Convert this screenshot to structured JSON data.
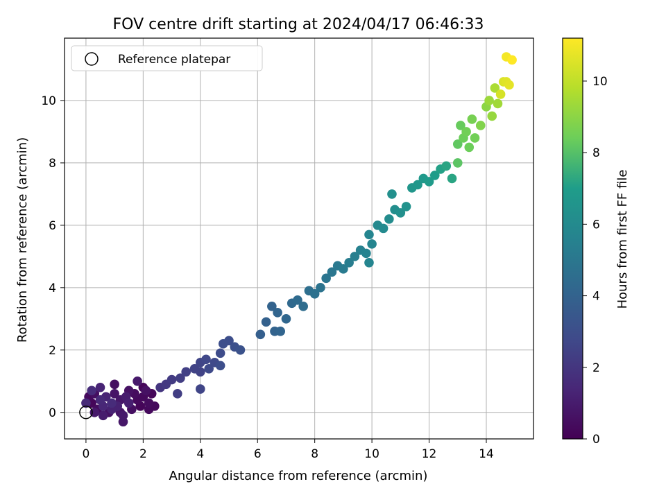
{
  "chart_data": {
    "type": "scatter",
    "title": "FOV centre drift starting at 2024/04/17 06:46:33",
    "xlabel": "Angular distance from reference (arcmin)",
    "ylabel": "Rotation from reference (arcmin)",
    "xlim": [
      -0.75,
      15.65
    ],
    "ylim": [
      -0.85,
      12.0
    ],
    "xticks": [
      0,
      2,
      4,
      6,
      8,
      10,
      12,
      14
    ],
    "yticks": [
      0,
      2,
      4,
      6,
      8,
      10
    ],
    "grid": true,
    "legend": {
      "placement": "top-left",
      "entries": [
        {
          "label": "Reference platepar",
          "marker": "open-circle",
          "color": "#000000"
        }
      ]
    },
    "reference_point": {
      "x": 0,
      "y": 0
    },
    "colorbar": {
      "label": "Hours from first FF file",
      "range": [
        0,
        11.2
      ],
      "ticks": [
        0,
        2,
        4,
        6,
        8,
        10
      ],
      "colormap": "viridis",
      "colors": [
        "#440154",
        "#482777",
        "#3f4a8a",
        "#31678e",
        "#26838f",
        "#1f9d8a",
        "#6cce5a",
        "#b6de2b",
        "#fee825"
      ]
    },
    "series": [
      {
        "colorby": "hours",
        "points": [
          [
            0.1,
            0.5,
            0.3
          ],
          [
            0.2,
            0.3,
            0.2
          ],
          [
            0.3,
            0.6,
            0.5
          ],
          [
            0.4,
            0.1,
            0.4
          ],
          [
            0.5,
            0.4,
            1.5
          ],
          [
            0.6,
            0.2,
            1.4
          ],
          [
            0.7,
            0.5,
            1.3
          ],
          [
            0.8,
            0.0,
            0.6
          ],
          [
            0.9,
            0.3,
            1.6
          ],
          [
            1.0,
            0.6,
            0.7
          ],
          [
            1.1,
            0.2,
            1.2
          ],
          [
            1.2,
            0.4,
            0.8
          ],
          [
            1.3,
            -0.1,
            0.9
          ],
          [
            1.4,
            0.5,
            1.0
          ],
          [
            1.5,
            0.3,
            1.1
          ],
          [
            1.6,
            0.1,
            0.5
          ],
          [
            1.7,
            0.6,
            0.4
          ],
          [
            1.8,
            0.4,
            0.3
          ],
          [
            1.9,
            0.2,
            0.2
          ],
          [
            2.0,
            0.5,
            0.3
          ],
          [
            2.1,
            0.7,
            0.6
          ],
          [
            2.2,
            0.3,
            0.4
          ],
          [
            2.3,
            0.6,
            0.2
          ],
          [
            2.4,
            0.2,
            0.3
          ],
          [
            0.3,
            0.0,
            0.9
          ],
          [
            0.6,
            -0.1,
            1.0
          ],
          [
            0.9,
            0.1,
            1.2
          ],
          [
            1.2,
            0.0,
            0.7
          ],
          [
            1.5,
            0.7,
            0.6
          ],
          [
            0.2,
            0.7,
            1.6
          ],
          [
            0.5,
            0.8,
            1.3
          ],
          [
            1.0,
            0.9,
            0.5
          ],
          [
            1.3,
            -0.3,
            0.8
          ],
          [
            1.8,
            1.0,
            0.9
          ],
          [
            2.0,
            0.8,
            0.2
          ],
          [
            2.2,
            0.1,
            0.3
          ],
          [
            0.0,
            0.3,
            1.5
          ],
          [
            2.6,
            0.8,
            2.0
          ],
          [
            2.8,
            0.9,
            2.1
          ],
          [
            3.0,
            1.05,
            2.2
          ],
          [
            3.3,
            1.1,
            2.3
          ],
          [
            3.5,
            1.3,
            2.4
          ],
          [
            3.8,
            1.4,
            2.5
          ],
          [
            4.0,
            1.6,
            2.6
          ],
          [
            4.2,
            1.7,
            2.7
          ],
          [
            4.0,
            1.3,
            2.5
          ],
          [
            3.2,
            0.6,
            2.3
          ],
          [
            4.0,
            0.75,
            2.6
          ],
          [
            4.5,
            1.6,
            2.8
          ],
          [
            4.7,
            1.9,
            2.9
          ],
          [
            4.8,
            2.2,
            3.0
          ],
          [
            5.0,
            2.3,
            3.0
          ],
          [
            5.2,
            2.1,
            3.1
          ],
          [
            5.4,
            2.0,
            3.2
          ],
          [
            4.7,
            1.5,
            3.0
          ],
          [
            4.3,
            1.4,
            2.8
          ],
          [
            6.1,
            2.5,
            3.8
          ],
          [
            6.3,
            2.9,
            3.9
          ],
          [
            6.5,
            3.4,
            4.0
          ],
          [
            6.6,
            2.6,
            4.0
          ],
          [
            6.7,
            3.2,
            4.1
          ],
          [
            6.8,
            2.6,
            4.1
          ],
          [
            7.0,
            3.0,
            4.2
          ],
          [
            7.2,
            3.5,
            4.3
          ],
          [
            7.4,
            3.6,
            4.4
          ],
          [
            7.6,
            3.4,
            4.5
          ],
          [
            7.8,
            3.9,
            4.6
          ],
          [
            8.0,
            3.8,
            4.7
          ],
          [
            8.2,
            4.0,
            4.8
          ],
          [
            8.4,
            4.3,
            4.9
          ],
          [
            8.6,
            4.5,
            5.0
          ],
          [
            8.8,
            4.7,
            5.1
          ],
          [
            9.0,
            4.6,
            5.2
          ],
          [
            9.2,
            4.8,
            5.3
          ],
          [
            9.4,
            5.0,
            5.4
          ],
          [
            9.6,
            5.2,
            5.5
          ],
          [
            9.8,
            5.1,
            5.6
          ],
          [
            10.0,
            5.4,
            5.7
          ],
          [
            9.9,
            5.7,
            5.7
          ],
          [
            9.9,
            4.8,
            5.7
          ],
          [
            10.2,
            6.0,
            5.9
          ],
          [
            10.4,
            5.9,
            6.0
          ],
          [
            10.6,
            6.2,
            6.1
          ],
          [
            10.8,
            6.5,
            6.2
          ],
          [
            11.0,
            6.4,
            6.3
          ],
          [
            10.7,
            7.0,
            6.3
          ],
          [
            11.2,
            6.6,
            6.4
          ],
          [
            11.4,
            7.2,
            6.6
          ],
          [
            11.6,
            7.3,
            6.7
          ],
          [
            11.8,
            7.5,
            6.8
          ],
          [
            12.0,
            7.4,
            6.9
          ],
          [
            12.2,
            7.6,
            7.0
          ],
          [
            12.4,
            7.8,
            7.1
          ],
          [
            12.6,
            7.9,
            7.2
          ],
          [
            12.8,
            7.5,
            7.2
          ],
          [
            13.0,
            8.6,
            8.2
          ],
          [
            13.1,
            9.2,
            8.3
          ],
          [
            13.0,
            8.0,
            8.1
          ],
          [
            13.2,
            8.8,
            8.4
          ],
          [
            13.3,
            9.0,
            8.5
          ],
          [
            13.4,
            8.5,
            8.4
          ],
          [
            13.5,
            9.4,
            8.6
          ],
          [
            13.6,
            8.8,
            8.5
          ],
          [
            13.8,
            9.2,
            8.8
          ],
          [
            14.0,
            9.8,
            9.0
          ],
          [
            14.1,
            10.0,
            9.3
          ],
          [
            14.2,
            9.5,
            9.2
          ],
          [
            14.3,
            10.4,
            9.6
          ],
          [
            14.4,
            9.9,
            9.4
          ],
          [
            14.6,
            10.6,
            10.5
          ],
          [
            14.7,
            10.6,
            10.6
          ],
          [
            14.8,
            10.5,
            10.7
          ],
          [
            14.5,
            10.2,
            10.4
          ],
          [
            14.7,
            11.4,
            11.0
          ],
          [
            14.9,
            11.3,
            11.2
          ]
        ]
      }
    ]
  }
}
